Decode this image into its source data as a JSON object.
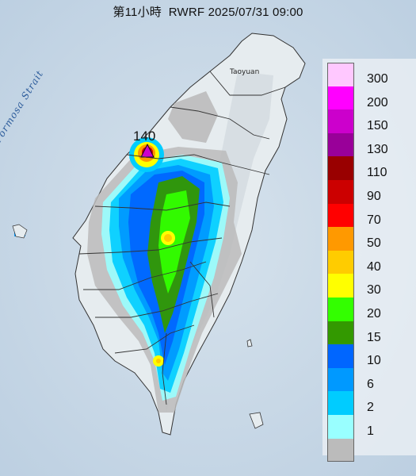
{
  "header": {
    "title": "第11小時  RWRF 2025/07/31 09:00",
    "max_marker_value": "140"
  },
  "map": {
    "strait_label": "Formosa Strait",
    "place_labels": [
      "Taoyuan"
    ],
    "ocean_color": "#c5d6e6",
    "land_color": "#e8eef0"
  },
  "legend": {
    "items": [
      {
        "label": "300",
        "color": "#ffc8ff"
      },
      {
        "label": "200",
        "color": "#ff00ff"
      },
      {
        "label": "150",
        "color": "#cc00cc"
      },
      {
        "label": "130",
        "color": "#990099"
      },
      {
        "label": "110",
        "color": "#990000"
      },
      {
        "label": "90",
        "color": "#cc0000"
      },
      {
        "label": "70",
        "color": "#ff0000"
      },
      {
        "label": "50",
        "color": "#ff9900"
      },
      {
        "label": "40",
        "color": "#ffcc00"
      },
      {
        "label": "30",
        "color": "#ffff00"
      },
      {
        "label": "20",
        "color": "#33ff00"
      },
      {
        "label": "15",
        "color": "#339900"
      },
      {
        "label": "10",
        "color": "#0066ff"
      },
      {
        "label": "6",
        "color": "#0099ff"
      },
      {
        "label": "2",
        "color": "#00ccff"
      },
      {
        "label": "1",
        "color": "#99ffff"
      },
      {
        "label": "",
        "color": "#bbbbbb"
      }
    ]
  }
}
